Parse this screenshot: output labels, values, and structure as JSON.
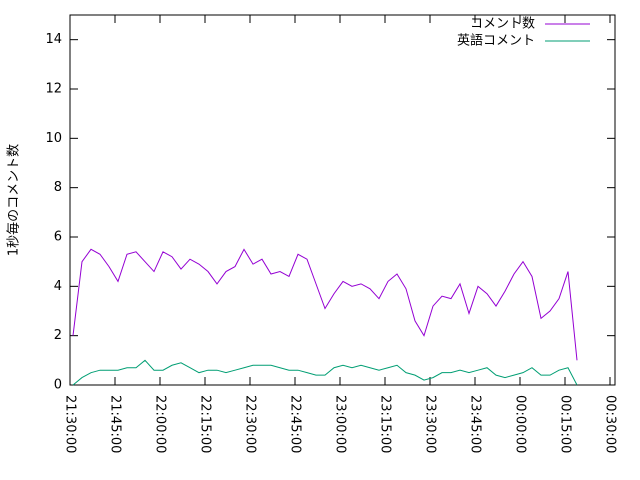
{
  "chart_data": {
    "type": "line",
    "y_label": "1秒毎のコメント数",
    "x": [
      77460,
      77640,
      77820,
      78000,
      78180,
      78360,
      78540,
      78720,
      78900,
      79080,
      79260,
      79440,
      79620,
      79800,
      79980,
      80160,
      80340,
      80520,
      80700,
      80880,
      81060,
      81240,
      81420,
      81600,
      81780,
      81960,
      82140,
      82320,
      82500,
      82680,
      82860,
      83040,
      83220,
      83400,
      83580,
      83760,
      83940,
      84120,
      84300,
      84480,
      84660,
      84840,
      85020,
      85200,
      85380,
      85560,
      85740,
      85920,
      86100,
      86280,
      86460,
      86640,
      86820,
      87000,
      87180,
      87360,
      87540
    ],
    "series": [
      {
        "name": "コメント数",
        "color": "#9400d3",
        "values": [
          2.0,
          5.0,
          5.5,
          5.3,
          4.8,
          4.2,
          5.3,
          5.4,
          5.0,
          4.6,
          5.4,
          5.2,
          4.7,
          5.1,
          4.9,
          4.6,
          4.1,
          4.6,
          4.8,
          5.5,
          4.9,
          5.1,
          4.5,
          4.6,
          4.4,
          5.3,
          5.1,
          4.1,
          3.1,
          3.7,
          4.2,
          4.0,
          4.1,
          3.9,
          3.5,
          4.2,
          4.5,
          3.9,
          2.6,
          2.0,
          3.2,
          3.6,
          3.5,
          4.1,
          2.9,
          4.0,
          3.7,
          3.2,
          3.8,
          4.5,
          5.0,
          4.4,
          2.7,
          3.0,
          3.5,
          4.6,
          1.0
        ]
      },
      {
        "name": "英語コメント",
        "color": "#009e73",
        "values": [
          0.0,
          0.3,
          0.5,
          0.6,
          0.6,
          0.6,
          0.7,
          0.7,
          1.0,
          0.6,
          0.6,
          0.8,
          0.9,
          0.7,
          0.5,
          0.6,
          0.6,
          0.5,
          0.6,
          0.7,
          0.8,
          0.8,
          0.8,
          0.7,
          0.6,
          0.6,
          0.5,
          0.4,
          0.4,
          0.7,
          0.8,
          0.7,
          0.8,
          0.7,
          0.6,
          0.7,
          0.8,
          0.5,
          0.4,
          0.2,
          0.3,
          0.5,
          0.5,
          0.6,
          0.5,
          0.6,
          0.7,
          0.4,
          0.3,
          0.4,
          0.5,
          0.7,
          0.4,
          0.4,
          0.6,
          0.7,
          0.0
        ]
      }
    ],
    "xlim": [
      77400,
      88300
    ],
    "xticks": [
      {
        "value": 77400,
        "label": "21:30:00"
      },
      {
        "value": 78300,
        "label": "21:45:00"
      },
      {
        "value": 79200,
        "label": "22:00:00"
      },
      {
        "value": 80100,
        "label": "22:15:00"
      },
      {
        "value": 81000,
        "label": "22:30:00"
      },
      {
        "value": 81900,
        "label": "22:45:00"
      },
      {
        "value": 82800,
        "label": "23:00:00"
      },
      {
        "value": 83700,
        "label": "23:15:00"
      },
      {
        "value": 84600,
        "label": "23:30:00"
      },
      {
        "value": 85500,
        "label": "23:45:00"
      },
      {
        "value": 86400,
        "label": "00:00:00"
      },
      {
        "value": 87300,
        "label": "00:15:00"
      },
      {
        "value": 88200,
        "label": "00:30:00"
      }
    ],
    "ylim": [
      0,
      15
    ],
    "yticks": [
      0,
      2,
      4,
      6,
      8,
      10,
      12,
      14
    ],
    "legend": "top-right"
  }
}
